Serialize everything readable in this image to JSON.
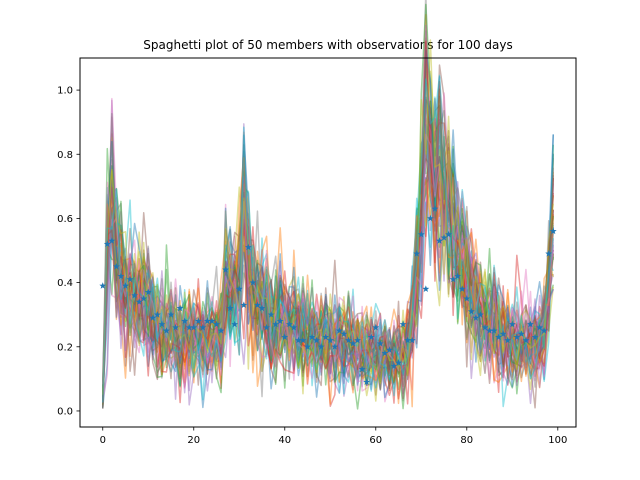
{
  "chart_data": {
    "type": "line",
    "title": "Spaghetti plot of 50 members with observations for 100 days",
    "xlabel": "",
    "ylabel": "",
    "xlim": [
      -5,
      104
    ],
    "ylim": [
      -0.05,
      1.1
    ],
    "x_ticks": [
      0,
      20,
      40,
      60,
      80,
      100
    ],
    "x_tick_labels": [
      "0",
      "20",
      "40",
      "60",
      "80",
      "100"
    ],
    "y_ticks": [
      0.0,
      0.2,
      0.4,
      0.6,
      0.8,
      1.0
    ],
    "y_tick_labels": [
      "0.0",
      "0.2",
      "0.4",
      "0.6",
      "0.8",
      "1.0"
    ],
    "grid": false,
    "legend": "none",
    "ensemble_members": 50,
    "days": 100,
    "ensemble_mean_approx": [
      0.03,
      0.55,
      0.66,
      0.52,
      0.42,
      0.38,
      0.37,
      0.35,
      0.33,
      0.33,
      0.32,
      0.29,
      0.27,
      0.26,
      0.25,
      0.24,
      0.24,
      0.23,
      0.23,
      0.23,
      0.23,
      0.22,
      0.22,
      0.22,
      0.22,
      0.22,
      0.23,
      0.41,
      0.4,
      0.37,
      0.39,
      0.63,
      0.48,
      0.38,
      0.33,
      0.32,
      0.3,
      0.28,
      0.28,
      0.27,
      0.27,
      0.26,
      0.26,
      0.25,
      0.25,
      0.24,
      0.24,
      0.23,
      0.23,
      0.23,
      0.22,
      0.22,
      0.22,
      0.21,
      0.21,
      0.2,
      0.2,
      0.19,
      0.19,
      0.19,
      0.18,
      0.18,
      0.18,
      0.17,
      0.17,
      0.17,
      0.17,
      0.19,
      0.25,
      0.42,
      0.63,
      0.88,
      0.8,
      0.75,
      0.74,
      0.67,
      0.62,
      0.57,
      0.51,
      0.47,
      0.42,
      0.38,
      0.35,
      0.32,
      0.3,
      0.28,
      0.27,
      0.25,
      0.24,
      0.23,
      0.22,
      0.22,
      0.21,
      0.21,
      0.21,
      0.21,
      0.22,
      0.25,
      0.4,
      0.6
    ],
    "observations": {
      "x": [
        0,
        1,
        2,
        3,
        4,
        5,
        6,
        7,
        8,
        9,
        10,
        11,
        12,
        13,
        14,
        15,
        16,
        17,
        18,
        19,
        20,
        21,
        22,
        23,
        24,
        25,
        26,
        27,
        28,
        29,
        30,
        31,
        32,
        33,
        34,
        35,
        36,
        37,
        38,
        39,
        40,
        41,
        42,
        43,
        44,
        45,
        46,
        47,
        48,
        49,
        50,
        51,
        52,
        53,
        54,
        55,
        56,
        57,
        58,
        59,
        60,
        61,
        62,
        63,
        64,
        65,
        66,
        67,
        68,
        69,
        70,
        71,
        72,
        73,
        74,
        75,
        76,
        77,
        78,
        79,
        80,
        81,
        82,
        83,
        84,
        85,
        86,
        87,
        88,
        89,
        90,
        91,
        92,
        93,
        94,
        95,
        96,
        97,
        98,
        99
      ],
      "y": [
        0.39,
        0.52,
        0.53,
        0.45,
        0.42,
        0.39,
        0.41,
        0.36,
        0.34,
        0.35,
        0.37,
        0.29,
        0.3,
        0.27,
        0.25,
        0.3,
        0.26,
        0.32,
        0.28,
        0.26,
        0.26,
        0.28,
        0.26,
        0.28,
        0.28,
        0.27,
        0.25,
        0.44,
        0.32,
        0.27,
        0.38,
        0.33,
        0.51,
        0.4,
        0.33,
        0.32,
        0.26,
        0.3,
        0.27,
        0.28,
        0.23,
        0.27,
        0.26,
        0.22,
        0.22,
        0.2,
        0.23,
        0.22,
        0.2,
        0.23,
        0.22,
        0.2,
        0.25,
        0.24,
        0.22,
        0.21,
        0.22,
        0.13,
        0.09,
        0.23,
        0.26,
        0.21,
        0.18,
        0.19,
        0.14,
        0.15,
        0.27,
        0.22,
        0.22,
        0.49,
        0.55,
        0.38,
        0.6,
        0.63,
        0.53,
        0.54,
        0.55,
        0.41,
        0.42,
        0.38,
        0.35,
        0.31,
        0.29,
        0.3,
        0.26,
        0.25,
        0.25,
        0.23,
        0.24,
        0.22,
        0.27,
        0.23,
        0.24,
        0.22,
        0.27,
        0.23,
        0.26,
        0.25,
        0.49,
        0.56
      ]
    },
    "member_colors": [
      "#1f77b4",
      "#ff7f0e",
      "#2ca02c",
      "#d62728",
      "#9467bd",
      "#8c564b",
      "#e377c2",
      "#7f7f7f",
      "#bcbd22",
      "#17becf"
    ],
    "observation_color": "#1f77b4",
    "observation_marker": "star"
  }
}
